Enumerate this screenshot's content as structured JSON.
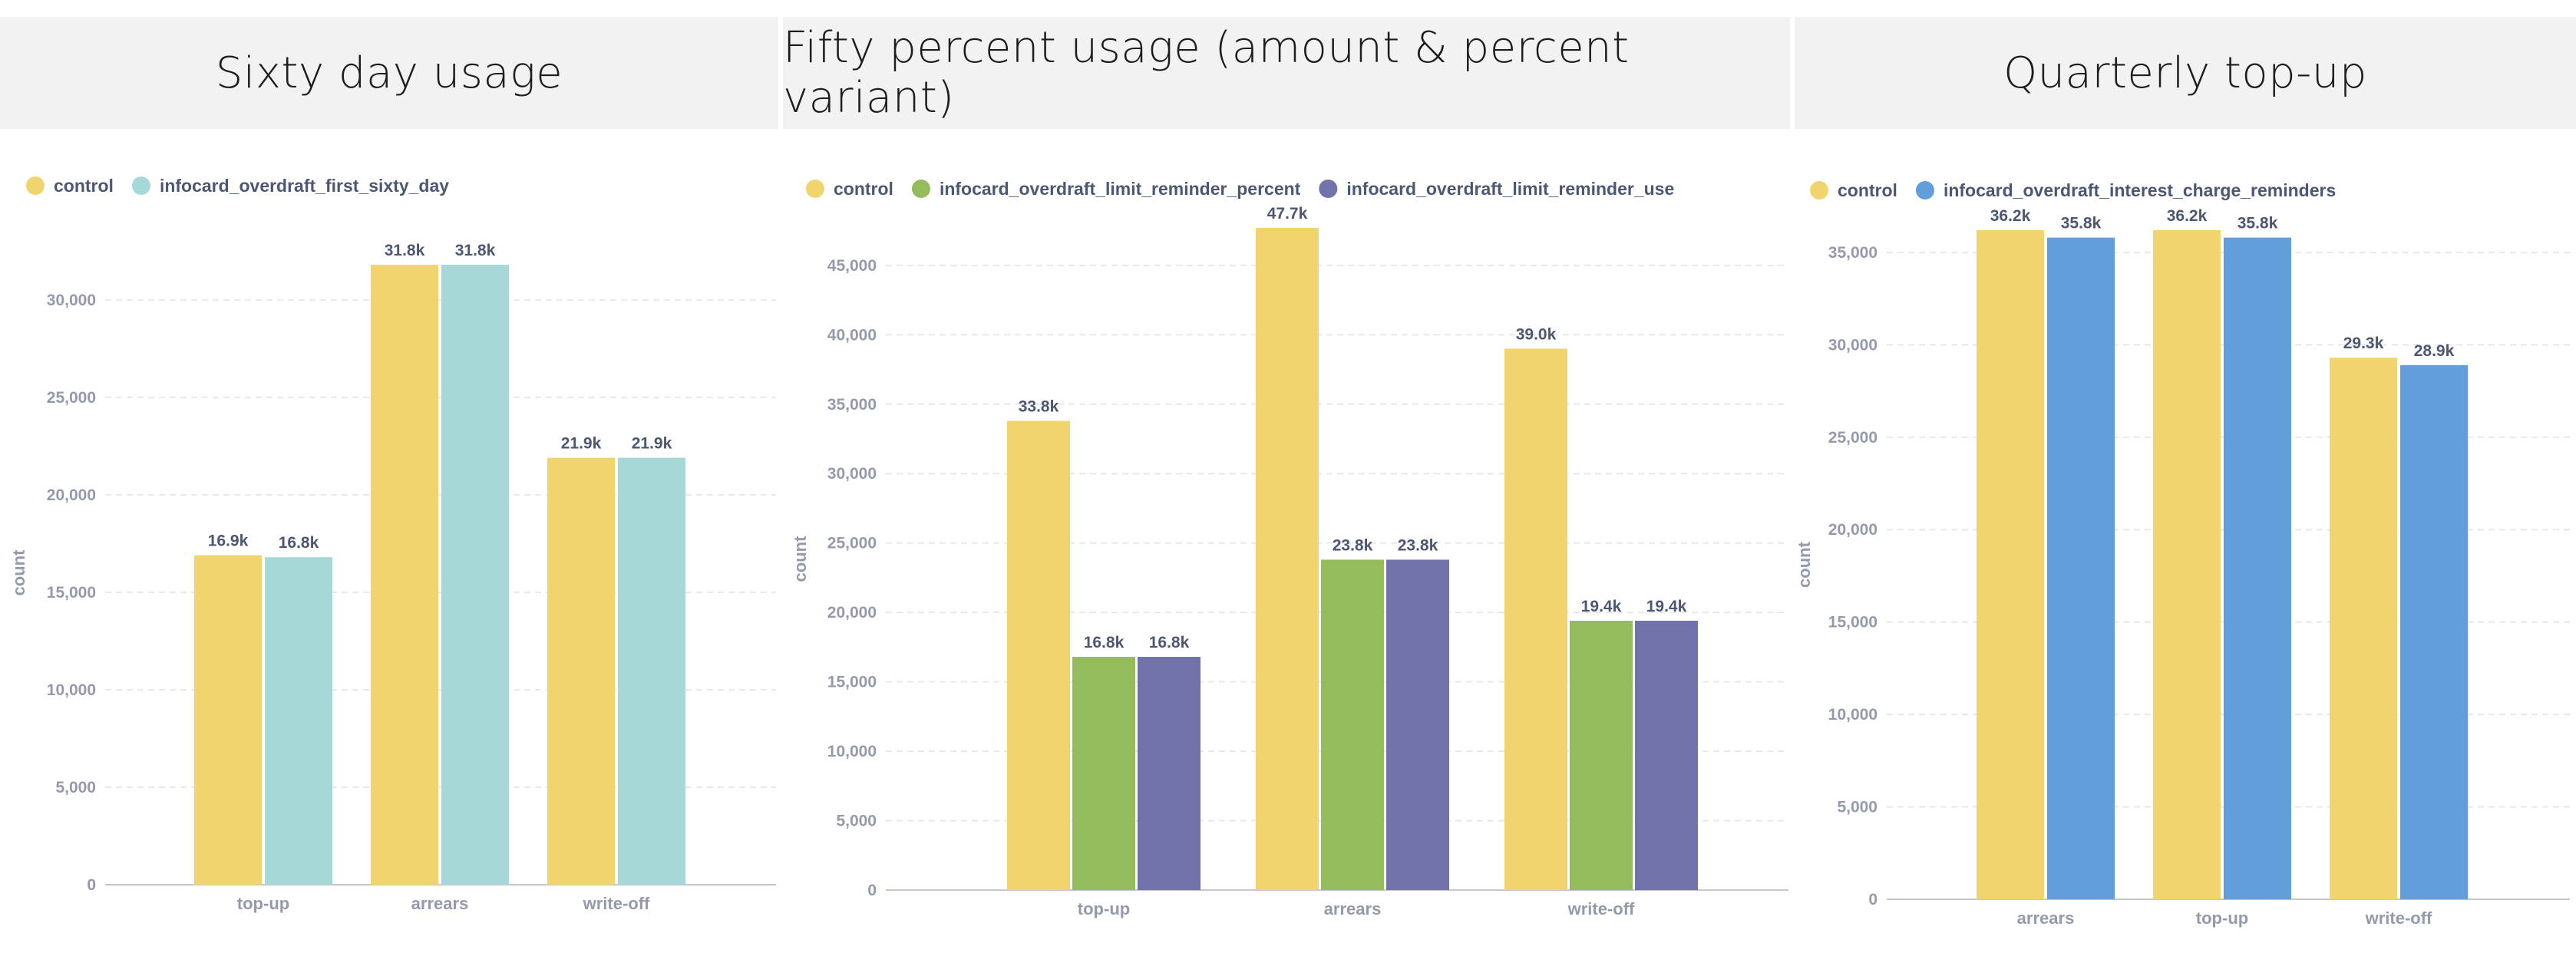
{
  "panels": [
    {
      "title": "Sixty day usage"
    },
    {
      "title": "Fifty percent usage (amount & percent variant)"
    },
    {
      "title": "Quarterly top-up"
    }
  ],
  "chart_data": [
    {
      "type": "bar",
      "title": "Sixty day usage",
      "ylabel": "count",
      "xlabel": "",
      "ylim": [
        0,
        32000
      ],
      "yticks": [
        0,
        5000,
        10000,
        15000,
        20000,
        25000,
        30000
      ],
      "ytick_labels": [
        "0",
        "5,000",
        "10,000",
        "15,000",
        "20,000",
        "25,000",
        "30,000"
      ],
      "categories": [
        "top-up",
        "arrears",
        "write-off"
      ],
      "legend_position": "top-left",
      "grid": true,
      "series": [
        {
          "name": "control",
          "color": "#f2d46f",
          "values": [
            16900,
            31800,
            21900
          ],
          "labels": [
            "16.9k",
            "31.8k",
            "21.9k"
          ]
        },
        {
          "name": "infocard_overdraft_first_sixty_day",
          "color": "#a6d8d8",
          "values": [
            16800,
            31800,
            21900
          ],
          "labels": [
            "16.8k",
            "31.8k",
            "21.9k"
          ]
        }
      ]
    },
    {
      "type": "bar",
      "title": "Fifty percent usage (amount & percent variant)",
      "ylabel": "count",
      "xlabel": "",
      "ylim": [
        0,
        47700
      ],
      "yticks": [
        0,
        5000,
        10000,
        15000,
        20000,
        25000,
        30000,
        35000,
        40000,
        45000
      ],
      "ytick_labels": [
        "0",
        "5,000",
        "10,000",
        "15,000",
        "20,000",
        "25,000",
        "30,000",
        "35,000",
        "40,000",
        "45,000"
      ],
      "categories": [
        "top-up",
        "arrears",
        "write-off"
      ],
      "legend_position": "top-left",
      "grid": true,
      "series": [
        {
          "name": "control",
          "color": "#f2d46f",
          "values": [
            33800,
            47700,
            39000
          ],
          "labels": [
            "33.8k",
            "47.7k",
            "39.0k"
          ]
        },
        {
          "name": "infocard_overdraft_limit_reminder_percent",
          "color": "#94bb5c",
          "values": [
            16800,
            23800,
            19400
          ],
          "labels": [
            "16.8k",
            "23.8k",
            "19.4k"
          ]
        },
        {
          "name": "infocard_overdraft_limit_reminder_use",
          "color": "#7172aa",
          "values": [
            16800,
            23800,
            19400
          ],
          "labels": [
            "16.8k",
            "23.8k",
            "19.4k"
          ]
        }
      ]
    },
    {
      "type": "bar",
      "title": "Quarterly top-up",
      "ylabel": "count",
      "xlabel": "",
      "ylim": [
        0,
        36200
      ],
      "yticks": [
        0,
        5000,
        10000,
        15000,
        20000,
        25000,
        30000,
        35000
      ],
      "ytick_labels": [
        "0",
        "5,000",
        "10,000",
        "15,000",
        "20,000",
        "25,000",
        "30,000",
        "35,000"
      ],
      "categories": [
        "arrears",
        "top-up",
        "write-off"
      ],
      "legend_position": "top-left",
      "grid": true,
      "series": [
        {
          "name": "control",
          "color": "#f2d46f",
          "values": [
            36200,
            36200,
            29300
          ],
          "labels": [
            "36.2k",
            "36.2k",
            "29.3k"
          ]
        },
        {
          "name": "infocard_overdraft_interest_charge_reminders",
          "color": "#629edb",
          "values": [
            35800,
            35800,
            28900
          ],
          "labels": [
            "35.8k",
            "35.8k",
            "28.9k"
          ]
        }
      ]
    }
  ]
}
